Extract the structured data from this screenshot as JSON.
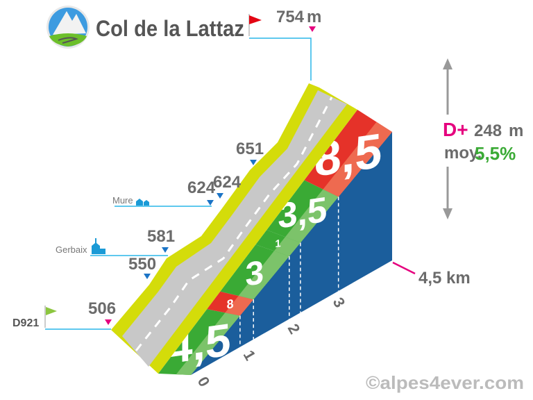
{
  "title": "Col de la Lattaz",
  "summit": {
    "elevation": "754",
    "unit": "m"
  },
  "start": {
    "road": "D921",
    "elevation": "506"
  },
  "markers": [
    {
      "elevation": "550"
    },
    {
      "elevation": "581"
    },
    {
      "elevation": "624"
    },
    {
      "elevation": "624"
    },
    {
      "elevation": "651"
    }
  ],
  "places": [
    {
      "name": "Gerbaix",
      "icon": "church-icon"
    },
    {
      "name": "Mure",
      "icon": "houses-icon"
    }
  ],
  "stats": {
    "dplus_label": "D+",
    "dplus_value": "248",
    "dplus_unit": "m",
    "avg_label": "moy.",
    "avg_value": "5,5%"
  },
  "distance": {
    "value": "4,5",
    "unit": "km"
  },
  "km_ticks": [
    "0",
    "1",
    "2",
    "3"
  ],
  "segments": [
    {
      "grade": "4,5",
      "start_km": 0,
      "end_km": 1.1,
      "color": "#3aaa35",
      "light": "#7cc36a"
    },
    {
      "grade": "8",
      "start_km": 1.1,
      "end_km": 1.4,
      "color": "#e53229",
      "light": "#ee6a50"
    },
    {
      "grade": "3",
      "start_km": 1.4,
      "end_km": 2.2,
      "color": "#3aaa35",
      "light": "#7cc36a"
    },
    {
      "grade": "1",
      "start_km": 2.2,
      "end_km": 2.45,
      "color": "#3aaa35",
      "light": "#7cc36a"
    },
    {
      "grade": "3,5",
      "start_km": 2.45,
      "end_km": 3.3,
      "color": "#3aaa35",
      "light": "#7cc36a"
    },
    {
      "grade": "8,5",
      "start_km": 3.3,
      "end_km": 4.5,
      "color": "#e53229",
      "light": "#ee6a50"
    }
  ],
  "copyright": "©alpes4ever.com",
  "colors": {
    "side": "#1b5e9c",
    "road": "#c8c8c8",
    "verge": "#d4dc0a",
    "accent_pink": "#e5007e",
    "accent_blue": "#29b6e8",
    "avg_green": "#3aaa35"
  }
}
